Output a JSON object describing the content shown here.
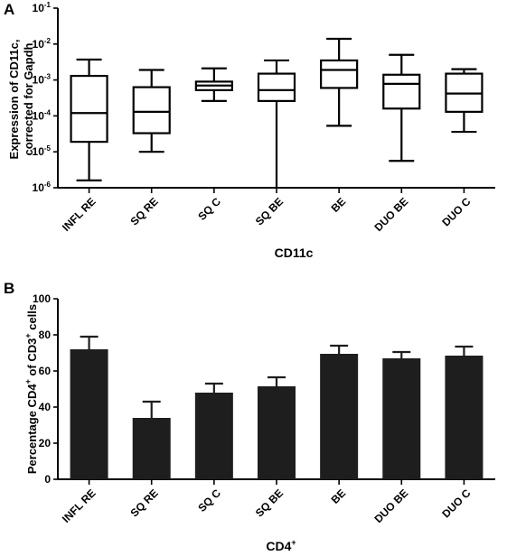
{
  "chart_data": [
    {
      "panel_label": "A",
      "type": "box",
      "title": "",
      "xlabel": "CD11c",
      "ylabel_lines": [
        "Expression of CD11c,",
        "corrected for Gapdh"
      ],
      "yscale": "log",
      "ylim": [
        1e-06,
        0.1
      ],
      "yticks": [
        {
          "value": 1e-06,
          "label": "10-6"
        },
        {
          "value": 1e-05,
          "label": "10-5"
        },
        {
          "value": 0.0001,
          "label": "10-4"
        },
        {
          "value": 0.001,
          "label": "10-3"
        },
        {
          "value": 0.01,
          "label": "10-2"
        },
        {
          "value": 0.1,
          "label": "10-1"
        }
      ],
      "categories": [
        "INFL RE",
        "SQ RE",
        "SQ C",
        "SQ BE",
        "BE",
        "DUO BE",
        "DUO C"
      ],
      "boxes": [
        {
          "min": 1.6e-06,
          "q1": 1.9e-05,
          "median": 0.00012,
          "q3": 0.0013,
          "max": 0.0037
        },
        {
          "min": 1e-05,
          "q1": 3.3e-05,
          "median": 0.00013,
          "q3": 0.00063,
          "max": 0.0019
        },
        {
          "min": 0.00026,
          "q1": 0.00052,
          "median": 0.0007,
          "q3": 0.0009,
          "max": 0.0021
        },
        {
          "min": 1e-06,
          "q1": 0.00026,
          "median": 0.00052,
          "q3": 0.0015,
          "max": 0.0035
        },
        {
          "min": 5.3e-05,
          "q1": 0.0006,
          "median": 0.0019,
          "q3": 0.0035,
          "max": 0.014
        },
        {
          "min": 5.6e-06,
          "q1": 0.00016,
          "median": 0.00078,
          "q3": 0.0014,
          "max": 0.005
        },
        {
          "min": 3.6e-05,
          "q1": 0.00013,
          "median": 0.00042,
          "q3": 0.0015,
          "max": 0.002
        }
      ],
      "grid": false
    },
    {
      "panel_label": "B",
      "type": "bar",
      "title": "",
      "xlabel_base": "CD4",
      "xlabel_sup": "+",
      "ylabel_parts": [
        "Percentage CD4",
        "+",
        " of CD3",
        "+",
        " cells"
      ],
      "ylim": [
        0,
        100
      ],
      "yticks": [
        0,
        20,
        40,
        60,
        80,
        100
      ],
      "categories": [
        "INFL RE",
        "SQ RE",
        "SQ C",
        "SQ BE",
        "BE",
        "DUO BE",
        "DUO C"
      ],
      "values": [
        72,
        34,
        48,
        51.5,
        69.5,
        67,
        68.5
      ],
      "error_upper": [
        79,
        43,
        53,
        56.5,
        74,
        70.5,
        73.5
      ],
      "grid": false
    }
  ]
}
